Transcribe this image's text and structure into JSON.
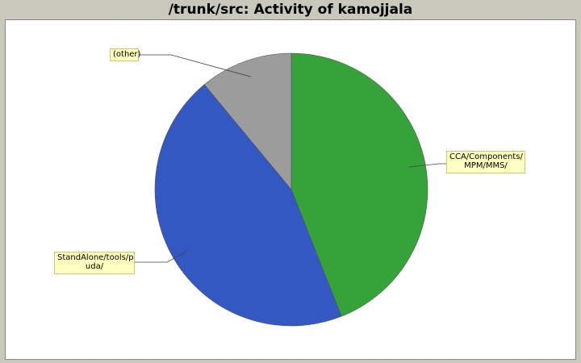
{
  "title": "/trunk/src: Activity of kamojjala",
  "chart_data": {
    "type": "pie",
    "title": "/trunk/src: Activity of kamojjala",
    "slices": [
      {
        "label": "CCA/Components/\nMPM/MMS/",
        "value": 44,
        "color": "#36a33a"
      },
      {
        "label": "StandAlone/tools/p\nuda/",
        "value": 45,
        "color": "#3358c2"
      },
      {
        "label": "(other)",
        "value": 11,
        "color": "#9c9c9c"
      }
    ],
    "start_angle": "12 o'clock",
    "direction": "clockwise",
    "legend": "none"
  }
}
